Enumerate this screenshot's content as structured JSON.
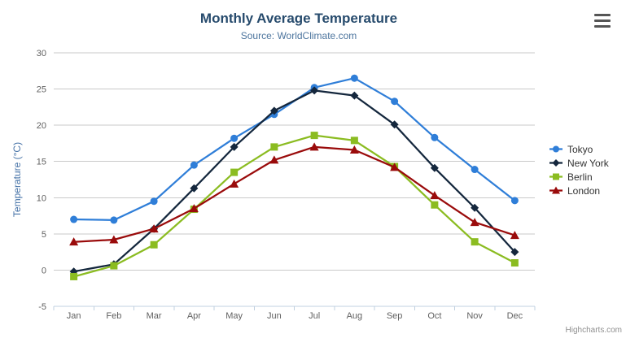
{
  "credits": "Highcharts.com",
  "colors": {
    "title": "#274b6d",
    "subtitle": "#4d759e",
    "axis_label": "#606060",
    "axis_title": "#4572a7",
    "grid_line": "#c9c9c9",
    "axis_line": "#c0d0e0",
    "legend_text": "#333333",
    "credits_text": "#8f8f8f",
    "menu_icon": "#555555"
  },
  "chart_data": {
    "type": "line",
    "title": "Monthly Average Temperature",
    "subtitle": "Source: WorldClimate.com",
    "xlabel": "",
    "ylabel": "Temperature (°C)",
    "ylim": [
      -5,
      30
    ],
    "y_ticks": [
      -5,
      0,
      5,
      10,
      15,
      20,
      25,
      30
    ],
    "grid": "horizontal",
    "legend_position": "right",
    "categories": [
      "Jan",
      "Feb",
      "Mar",
      "Apr",
      "May",
      "Jun",
      "Jul",
      "Aug",
      "Sep",
      "Oct",
      "Nov",
      "Dec"
    ],
    "series": [
      {
        "name": "Tokyo",
        "color": "#2f7ed8",
        "marker": "circle",
        "values": [
          7.0,
          6.9,
          9.5,
          14.5,
          18.2,
          21.5,
          25.2,
          26.5,
          23.3,
          18.3,
          13.9,
          9.6
        ]
      },
      {
        "name": "New York",
        "color": "#14273d",
        "marker": "diamond",
        "values": [
          -0.2,
          0.8,
          5.7,
          11.3,
          17.0,
          22.0,
          24.8,
          24.1,
          20.1,
          14.1,
          8.6,
          2.5
        ]
      },
      {
        "name": "Berlin",
        "color": "#8bbc21",
        "marker": "square",
        "values": [
          -0.9,
          0.6,
          3.5,
          8.4,
          13.5,
          17.0,
          18.6,
          17.9,
          14.3,
          9.0,
          3.9,
          1.0
        ]
      },
      {
        "name": "London",
        "color": "#9a0b0b",
        "marker": "triangle",
        "values": [
          3.9,
          4.2,
          5.7,
          8.5,
          11.9,
          15.2,
          17.0,
          16.6,
          14.2,
          10.3,
          6.6,
          4.8
        ]
      }
    ]
  }
}
